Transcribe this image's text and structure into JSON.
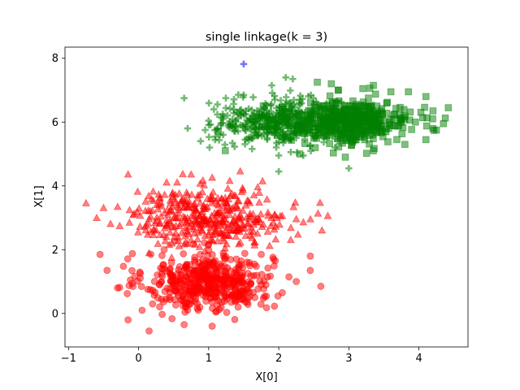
{
  "chart_data": {
    "type": "scatter",
    "title": "single linkage(k = 3)",
    "xlabel": "X[0]",
    "ylabel": "X[1]",
    "xlim": [
      -1.05,
      4.7
    ],
    "ylim": [
      -1.05,
      8.35
    ],
    "xticks": [
      "−1",
      "0",
      "1",
      "2",
      "3",
      "4"
    ],
    "yticks": [
      "0",
      "2",
      "4",
      "6",
      "8"
    ],
    "xtick_values": [
      -1,
      0,
      1,
      2,
      3,
      4
    ],
    "ytick_values": [
      0,
      2,
      4,
      6,
      8
    ],
    "grid": false,
    "legend": "none",
    "series": [
      {
        "color": "#ff0000",
        "marker": "circle",
        "cluster_center": [
          1.0,
          1.0
        ],
        "cluster_spread": [
          0.45,
          0.45
        ],
        "approx_count": 500,
        "points": [
          [
            -0.55,
            1.85
          ],
          [
            -0.45,
            1.35
          ],
          [
            -0.3,
            0.8
          ],
          [
            -0.15,
            -0.2
          ],
          [
            0.15,
            -0.55
          ],
          [
            0.05,
            0.1
          ],
          [
            0.2,
            0.3
          ],
          [
            0.3,
            0.9
          ],
          [
            0.45,
            1.4
          ],
          [
            0.65,
            -0.35
          ],
          [
            0.85,
            0.1
          ],
          [
            1.0,
            0.95
          ],
          [
            1.1,
            0.05
          ],
          [
            1.05,
            -0.4
          ],
          [
            1.4,
            1.2
          ],
          [
            1.55,
            0.35
          ],
          [
            1.75,
            1.85
          ],
          [
            1.95,
            1.65
          ],
          [
            2.05,
            0.65
          ],
          [
            2.25,
            1.0
          ],
          [
            2.45,
            1.8
          ],
          [
            2.6,
            0.85
          ]
        ]
      },
      {
        "color": "#ff0000",
        "marker": "triangle",
        "cluster_center": [
          1.0,
          3.0
        ],
        "cluster_spread": [
          0.55,
          0.45
        ],
        "approx_count": 400,
        "points": [
          [
            -0.75,
            3.45
          ],
          [
            -0.5,
            3.3
          ],
          [
            -0.4,
            2.8
          ],
          [
            -0.15,
            4.35
          ],
          [
            0.1,
            3.5
          ],
          [
            0.15,
            2.95
          ],
          [
            0.4,
            4.1
          ],
          [
            0.55,
            4.1
          ],
          [
            0.75,
            4.35
          ],
          [
            1.05,
            4.25
          ],
          [
            1.3,
            4.15
          ],
          [
            1.45,
            4.45
          ],
          [
            1.7,
            3.95
          ],
          [
            2.05,
            3.05
          ],
          [
            2.25,
            2.95
          ],
          [
            2.35,
            2.85
          ],
          [
            2.7,
            3.05
          ]
        ]
      },
      {
        "color": "#0000ff",
        "marker": "plus",
        "cluster_center": [
          1.5,
          7.8
        ],
        "cluster_spread": [
          0,
          0
        ],
        "approx_count": 1,
        "points": [
          [
            1.5,
            7.82
          ]
        ]
      },
      {
        "color": "#008000",
        "marker": "plus",
        "cluster_center": [
          2.0,
          6.0
        ],
        "cluster_spread": [
          0.45,
          0.35
        ],
        "approx_count": 450,
        "points": [
          [
            0.65,
            6.75
          ],
          [
            0.7,
            5.8
          ],
          [
            0.95,
            5.75
          ],
          [
            1.2,
            6.25
          ],
          [
            1.5,
            6.85
          ],
          [
            1.9,
            7.15
          ],
          [
            2.1,
            7.4
          ],
          [
            2.2,
            7.35
          ],
          [
            2.3,
            6.7
          ],
          [
            2.0,
            4.95
          ],
          [
            2.0,
            4.45
          ],
          [
            2.35,
            4.95
          ],
          [
            3.0,
            4.55
          ]
        ]
      },
      {
        "color": "#008000",
        "marker": "square",
        "cluster_center": [
          3.0,
          6.0
        ],
        "cluster_spread": [
          0.45,
          0.32
        ],
        "approx_count": 450,
        "points": [
          [
            2.55,
            7.25
          ],
          [
            2.75,
            7.2
          ],
          [
            3.35,
            7.15
          ],
          [
            3.2,
            7.05
          ],
          [
            3.6,
            6.95
          ],
          [
            3.85,
            6.95
          ],
          [
            4.1,
            6.8
          ],
          [
            4.2,
            6.35
          ],
          [
            4.35,
            5.95
          ],
          [
            4.2,
            5.8
          ],
          [
            4.25,
            5.75
          ],
          [
            4.1,
            5.45
          ],
          [
            3.8,
            5.3
          ],
          [
            3.35,
            5.1
          ],
          [
            2.95,
            4.9
          ],
          [
            2.3,
            5.0
          ],
          [
            2.85,
            7.0
          ],
          [
            3.4,
            6.5
          ],
          [
            3.95,
            6.0
          ]
        ]
      }
    ]
  }
}
